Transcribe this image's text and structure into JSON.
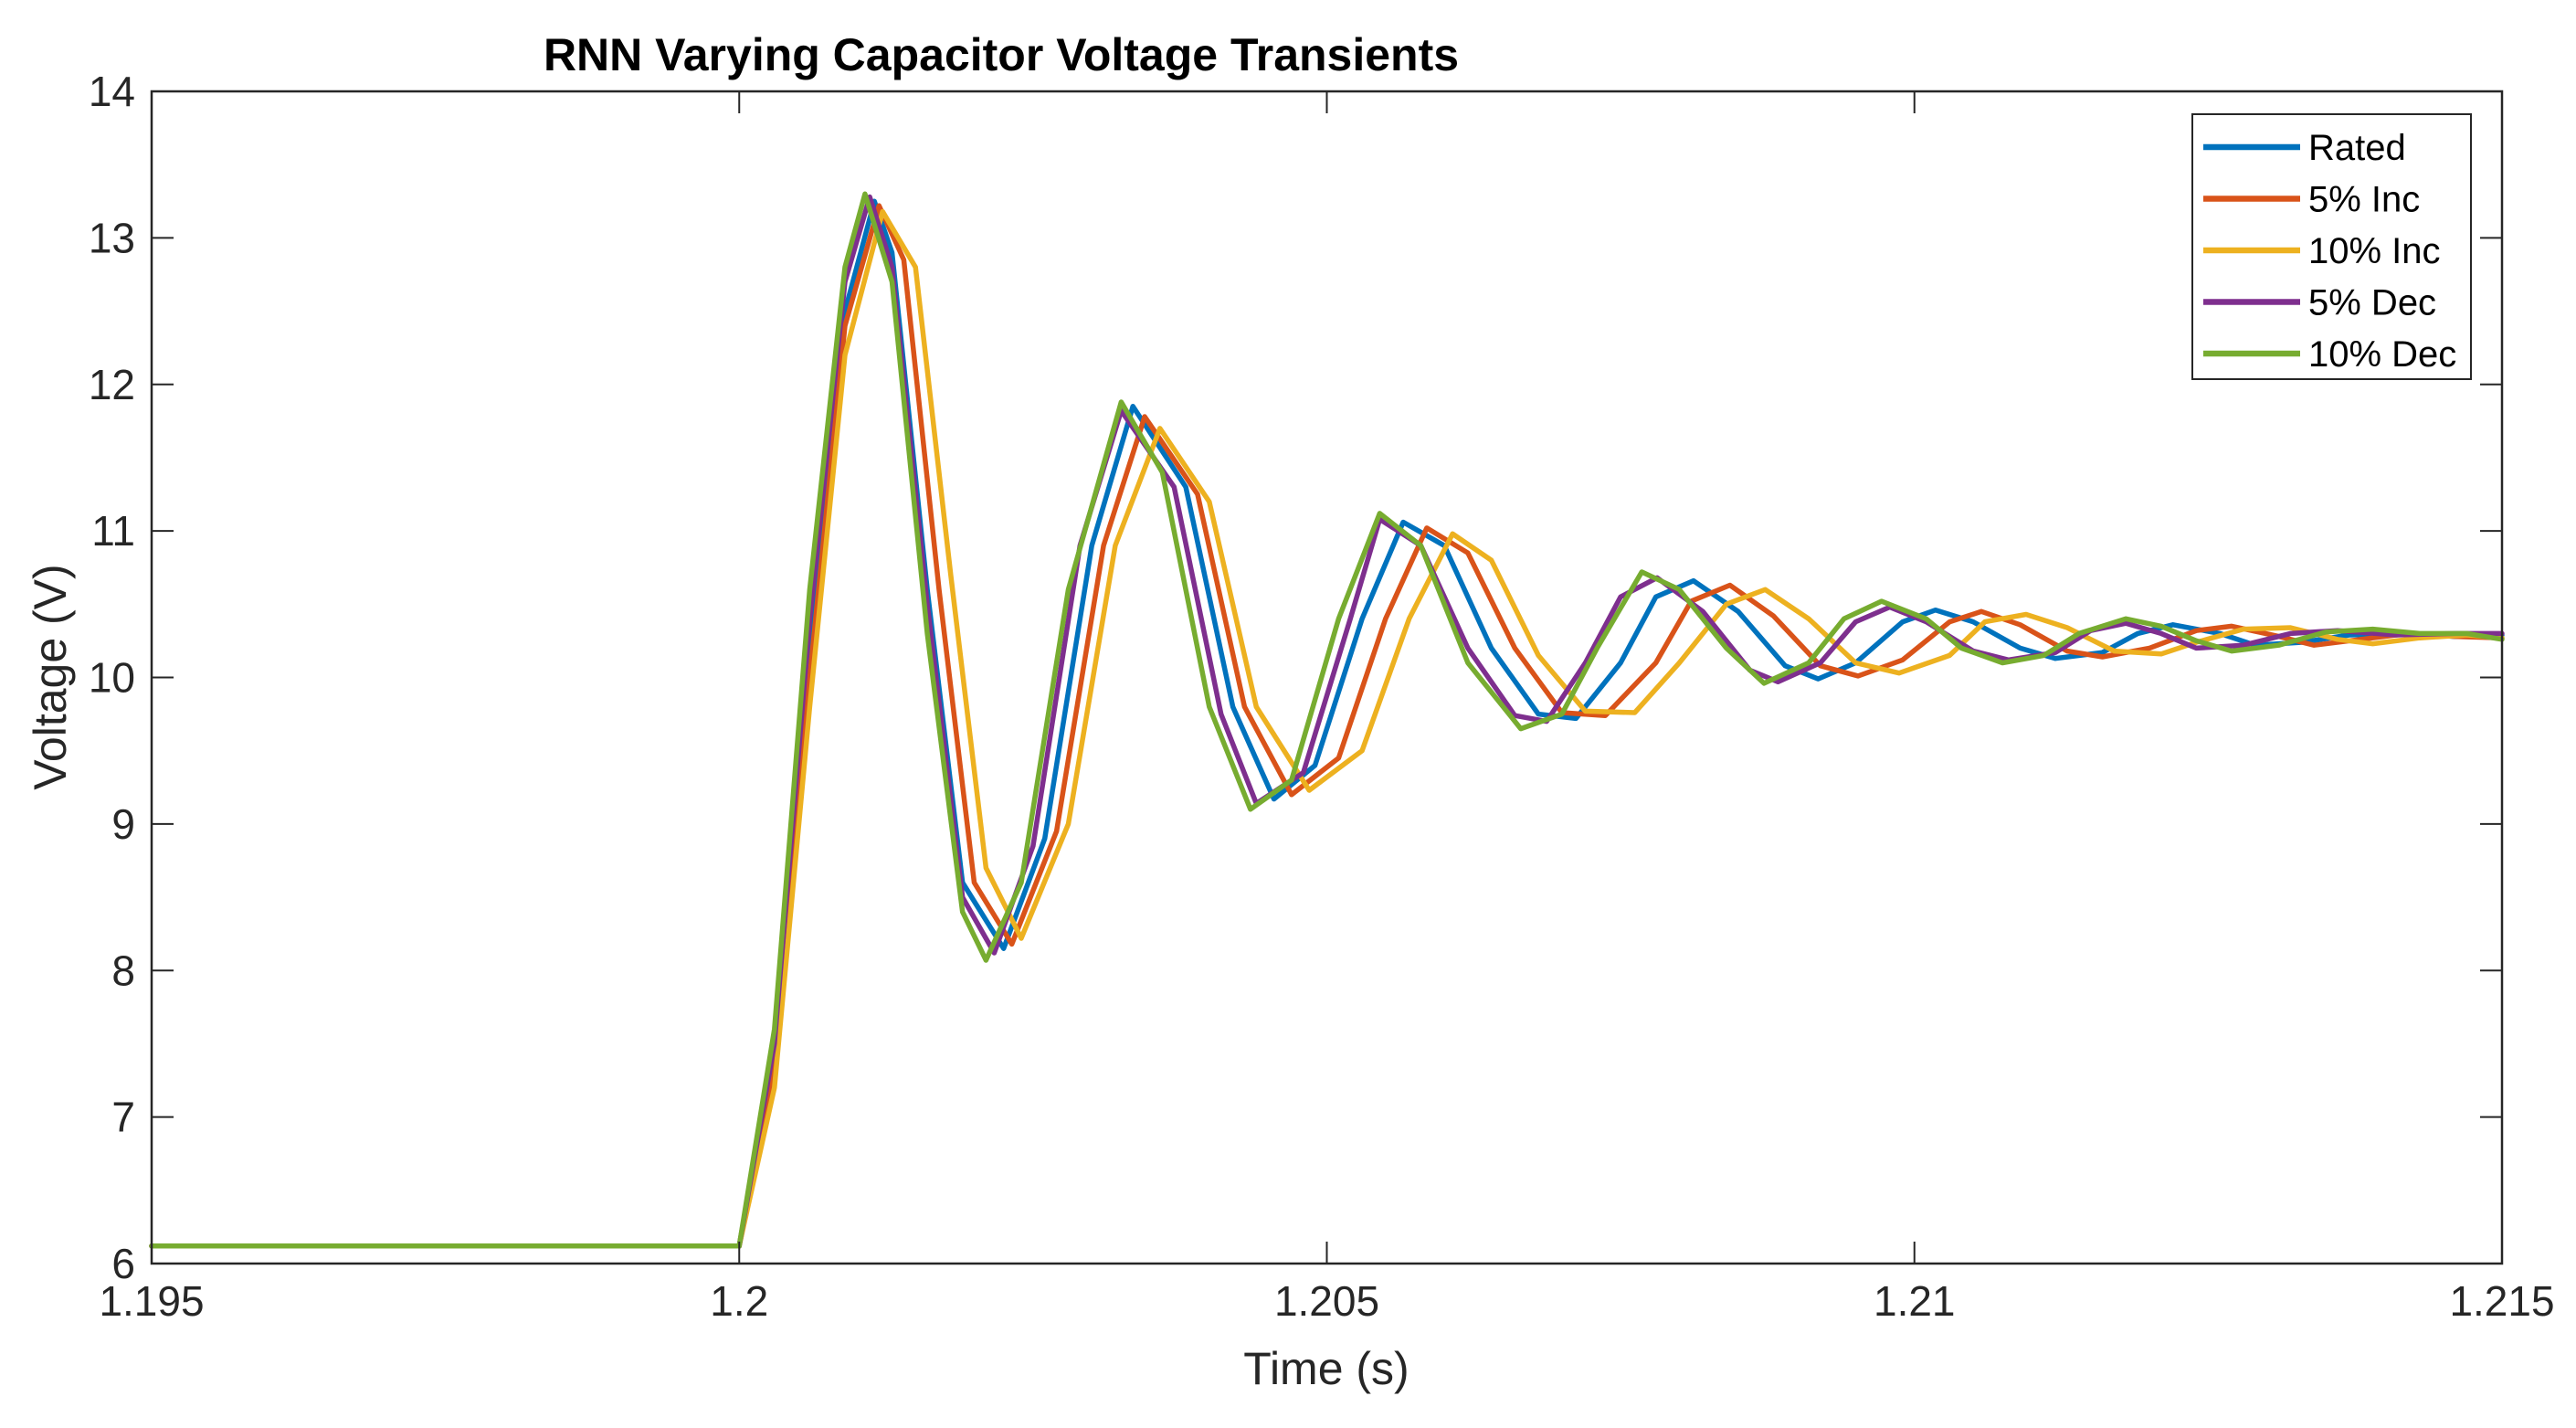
{
  "chart_data": {
    "type": "line",
    "title": "RNN Varying Capacitor Voltage Transients",
    "xlabel": "Time (s)",
    "ylabel": "Voltage (V)",
    "xlim": [
      1.195,
      1.215
    ],
    "ylim": [
      6,
      14
    ],
    "xticks": [
      1.195,
      1.2,
      1.205,
      1.21,
      1.215
    ],
    "xtick_labels": [
      "1.195",
      "1.2",
      "1.205",
      "1.21",
      "1.215"
    ],
    "yticks": [
      6,
      7,
      8,
      9,
      10,
      11,
      12,
      13,
      14
    ],
    "ytick_labels": [
      "6",
      "7",
      "8",
      "9",
      "10",
      "11",
      "12",
      "13",
      "14"
    ],
    "grid": false,
    "legend_position": "top-right",
    "series": [
      {
        "name": "Rated",
        "color": "#0072BD",
        "x": [
          1.195,
          1.2,
          1.2003,
          1.2006,
          1.2009,
          1.20115,
          1.2013,
          1.2016,
          1.2019,
          1.20225,
          1.2026,
          1.203,
          1.20335,
          1.2038,
          1.2042,
          1.20455,
          1.2049,
          1.2053,
          1.20565,
          1.206,
          1.2064,
          1.2068,
          1.20712,
          1.2075,
          1.2078,
          1.20812,
          1.2085,
          1.2089,
          1.20918,
          1.2095,
          1.2099,
          1.21018,
          1.2105,
          1.2109,
          1.2112,
          1.2116,
          1.2119,
          1.2122,
          1.2126,
          1.2129,
          1.2133,
          1.2137,
          1.2142,
          1.2146,
          1.215
        ],
        "y": [
          6.12,
          6.12,
          7.4,
          10.2,
          12.5,
          13.25,
          12.9,
          10.6,
          8.6,
          8.15,
          8.9,
          10.9,
          11.85,
          11.3,
          9.8,
          9.17,
          9.4,
          10.4,
          11.06,
          10.9,
          10.2,
          9.75,
          9.72,
          10.1,
          10.55,
          10.66,
          10.45,
          10.08,
          9.99,
          10.1,
          10.38,
          10.46,
          10.38,
          10.2,
          10.13,
          10.17,
          10.3,
          10.36,
          10.3,
          10.22,
          10.24,
          10.29,
          10.3,
          10.28,
          10.29
        ]
      },
      {
        "name": "5% Inc",
        "color": "#D95319",
        "x": [
          1.195,
          1.2,
          1.2003,
          1.2006,
          1.2009,
          1.20119,
          1.2014,
          1.2017,
          1.202,
          1.20232,
          1.2027,
          1.2031,
          1.20345,
          1.2039,
          1.2043,
          1.2047,
          1.2051,
          1.2055,
          1.20585,
          1.2062,
          1.2066,
          1.207,
          1.20737,
          1.2078,
          1.2081,
          1.20843,
          1.2088,
          1.2092,
          1.20952,
          1.2099,
          1.2103,
          1.21057,
          1.2109,
          1.2113,
          1.2116,
          1.212,
          1.2124,
          1.2127,
          1.2131,
          1.2134,
          1.2138,
          1.2142,
          1.2146,
          1.215
        ],
        "y": [
          6.12,
          6.12,
          7.3,
          10.0,
          12.4,
          13.22,
          12.85,
          10.6,
          8.6,
          8.18,
          8.95,
          10.9,
          11.78,
          11.25,
          9.8,
          9.2,
          9.45,
          10.4,
          11.02,
          10.85,
          10.2,
          9.76,
          9.74,
          10.1,
          10.52,
          10.63,
          10.42,
          10.08,
          10.01,
          10.12,
          10.38,
          10.45,
          10.36,
          10.18,
          10.14,
          10.2,
          10.32,
          10.35,
          10.28,
          10.22,
          10.26,
          10.3,
          10.28,
          10.27
        ]
      },
      {
        "name": "10% Inc",
        "color": "#EDB120",
        "x": [
          1.195,
          1.2,
          1.2003,
          1.2006,
          1.2009,
          1.20122,
          1.2015,
          1.2018,
          1.2021,
          1.2024,
          1.2028,
          1.2032,
          1.20358,
          1.204,
          1.2044,
          1.20485,
          1.2053,
          1.2057,
          1.20607,
          1.2064,
          1.2068,
          1.2072,
          1.20762,
          1.208,
          1.2084,
          1.20873,
          1.2091,
          1.2095,
          1.20987,
          1.2103,
          1.2106,
          1.21095,
          1.2113,
          1.2117,
          1.2121,
          1.2124,
          1.2128,
          1.2132,
          1.2136,
          1.2139,
          1.2143,
          1.2147,
          1.215
        ],
        "y": [
          6.12,
          6.12,
          7.2,
          9.8,
          12.2,
          13.18,
          12.8,
          10.7,
          8.7,
          8.22,
          9.0,
          10.9,
          11.7,
          11.2,
          9.8,
          9.23,
          9.5,
          10.4,
          10.98,
          10.8,
          10.15,
          9.77,
          9.76,
          10.1,
          10.5,
          10.6,
          10.4,
          10.1,
          10.03,
          10.15,
          10.38,
          10.43,
          10.34,
          10.18,
          10.16,
          10.24,
          10.33,
          10.34,
          10.26,
          10.23,
          10.27,
          10.29,
          10.27
        ]
      },
      {
        "name": "5% Dec",
        "color": "#7E2F8E",
        "x": [
          1.195,
          1.2,
          1.2003,
          1.2006,
          1.2009,
          1.20111,
          1.2013,
          1.2016,
          1.2019,
          1.20217,
          1.2025,
          1.2029,
          1.20325,
          1.2037,
          1.2041,
          1.2044,
          1.2048,
          1.2052,
          1.20545,
          1.2058,
          1.2062,
          1.2066,
          1.20687,
          1.2072,
          1.2075,
          1.20781,
          1.2082,
          1.2086,
          1.20884,
          1.2092,
          1.2095,
          1.20979,
          1.2101,
          1.2105,
          1.2108,
          1.2112,
          1.2115,
          1.2118,
          1.2121,
          1.2124,
          1.2128,
          1.2132,
          1.2136,
          1.2141,
          1.2146,
          1.215
        ],
        "y": [
          6.12,
          6.12,
          7.5,
          10.4,
          12.7,
          13.28,
          12.8,
          10.5,
          8.5,
          8.12,
          8.85,
          10.9,
          11.82,
          11.3,
          9.75,
          9.14,
          9.35,
          10.4,
          11.08,
          10.9,
          10.2,
          9.74,
          9.7,
          10.1,
          10.55,
          10.68,
          10.45,
          10.05,
          9.97,
          10.1,
          10.38,
          10.48,
          10.38,
          10.18,
          10.12,
          10.17,
          10.32,
          10.37,
          10.3,
          10.2,
          10.22,
          10.3,
          10.32,
          10.29,
          10.3,
          10.3
        ]
      },
      {
        "name": "10% Dec",
        "color": "#77AC30",
        "x": [
          1.195,
          1.2,
          1.2003,
          1.2006,
          1.2009,
          1.20107,
          1.2013,
          1.2016,
          1.2019,
          1.2021,
          1.2024,
          1.2028,
          1.20325,
          1.2036,
          1.204,
          1.20435,
          1.2047,
          1.2051,
          1.20545,
          1.2058,
          1.2062,
          1.20665,
          1.207,
          1.2073,
          1.20768,
          1.208,
          1.2084,
          1.20872,
          1.2091,
          1.2094,
          1.20972,
          1.2101,
          1.2104,
          1.21075,
          1.2111,
          1.2114,
          1.2118,
          1.2121,
          1.2124,
          1.2127,
          1.2131,
          1.2135,
          1.2139,
          1.2143,
          1.2147,
          1.215
        ],
        "y": [
          6.12,
          6.12,
          7.6,
          10.6,
          12.8,
          13.3,
          12.7,
          10.3,
          8.4,
          8.07,
          8.6,
          10.6,
          11.88,
          11.4,
          9.8,
          9.1,
          9.3,
          10.4,
          11.12,
          10.9,
          10.1,
          9.65,
          9.75,
          10.2,
          10.72,
          10.6,
          10.2,
          9.96,
          10.1,
          10.4,
          10.52,
          10.4,
          10.2,
          10.1,
          10.15,
          10.3,
          10.4,
          10.35,
          10.25,
          10.18,
          10.22,
          10.31,
          10.33,
          10.3,
          10.3,
          10.26
        ]
      }
    ]
  }
}
